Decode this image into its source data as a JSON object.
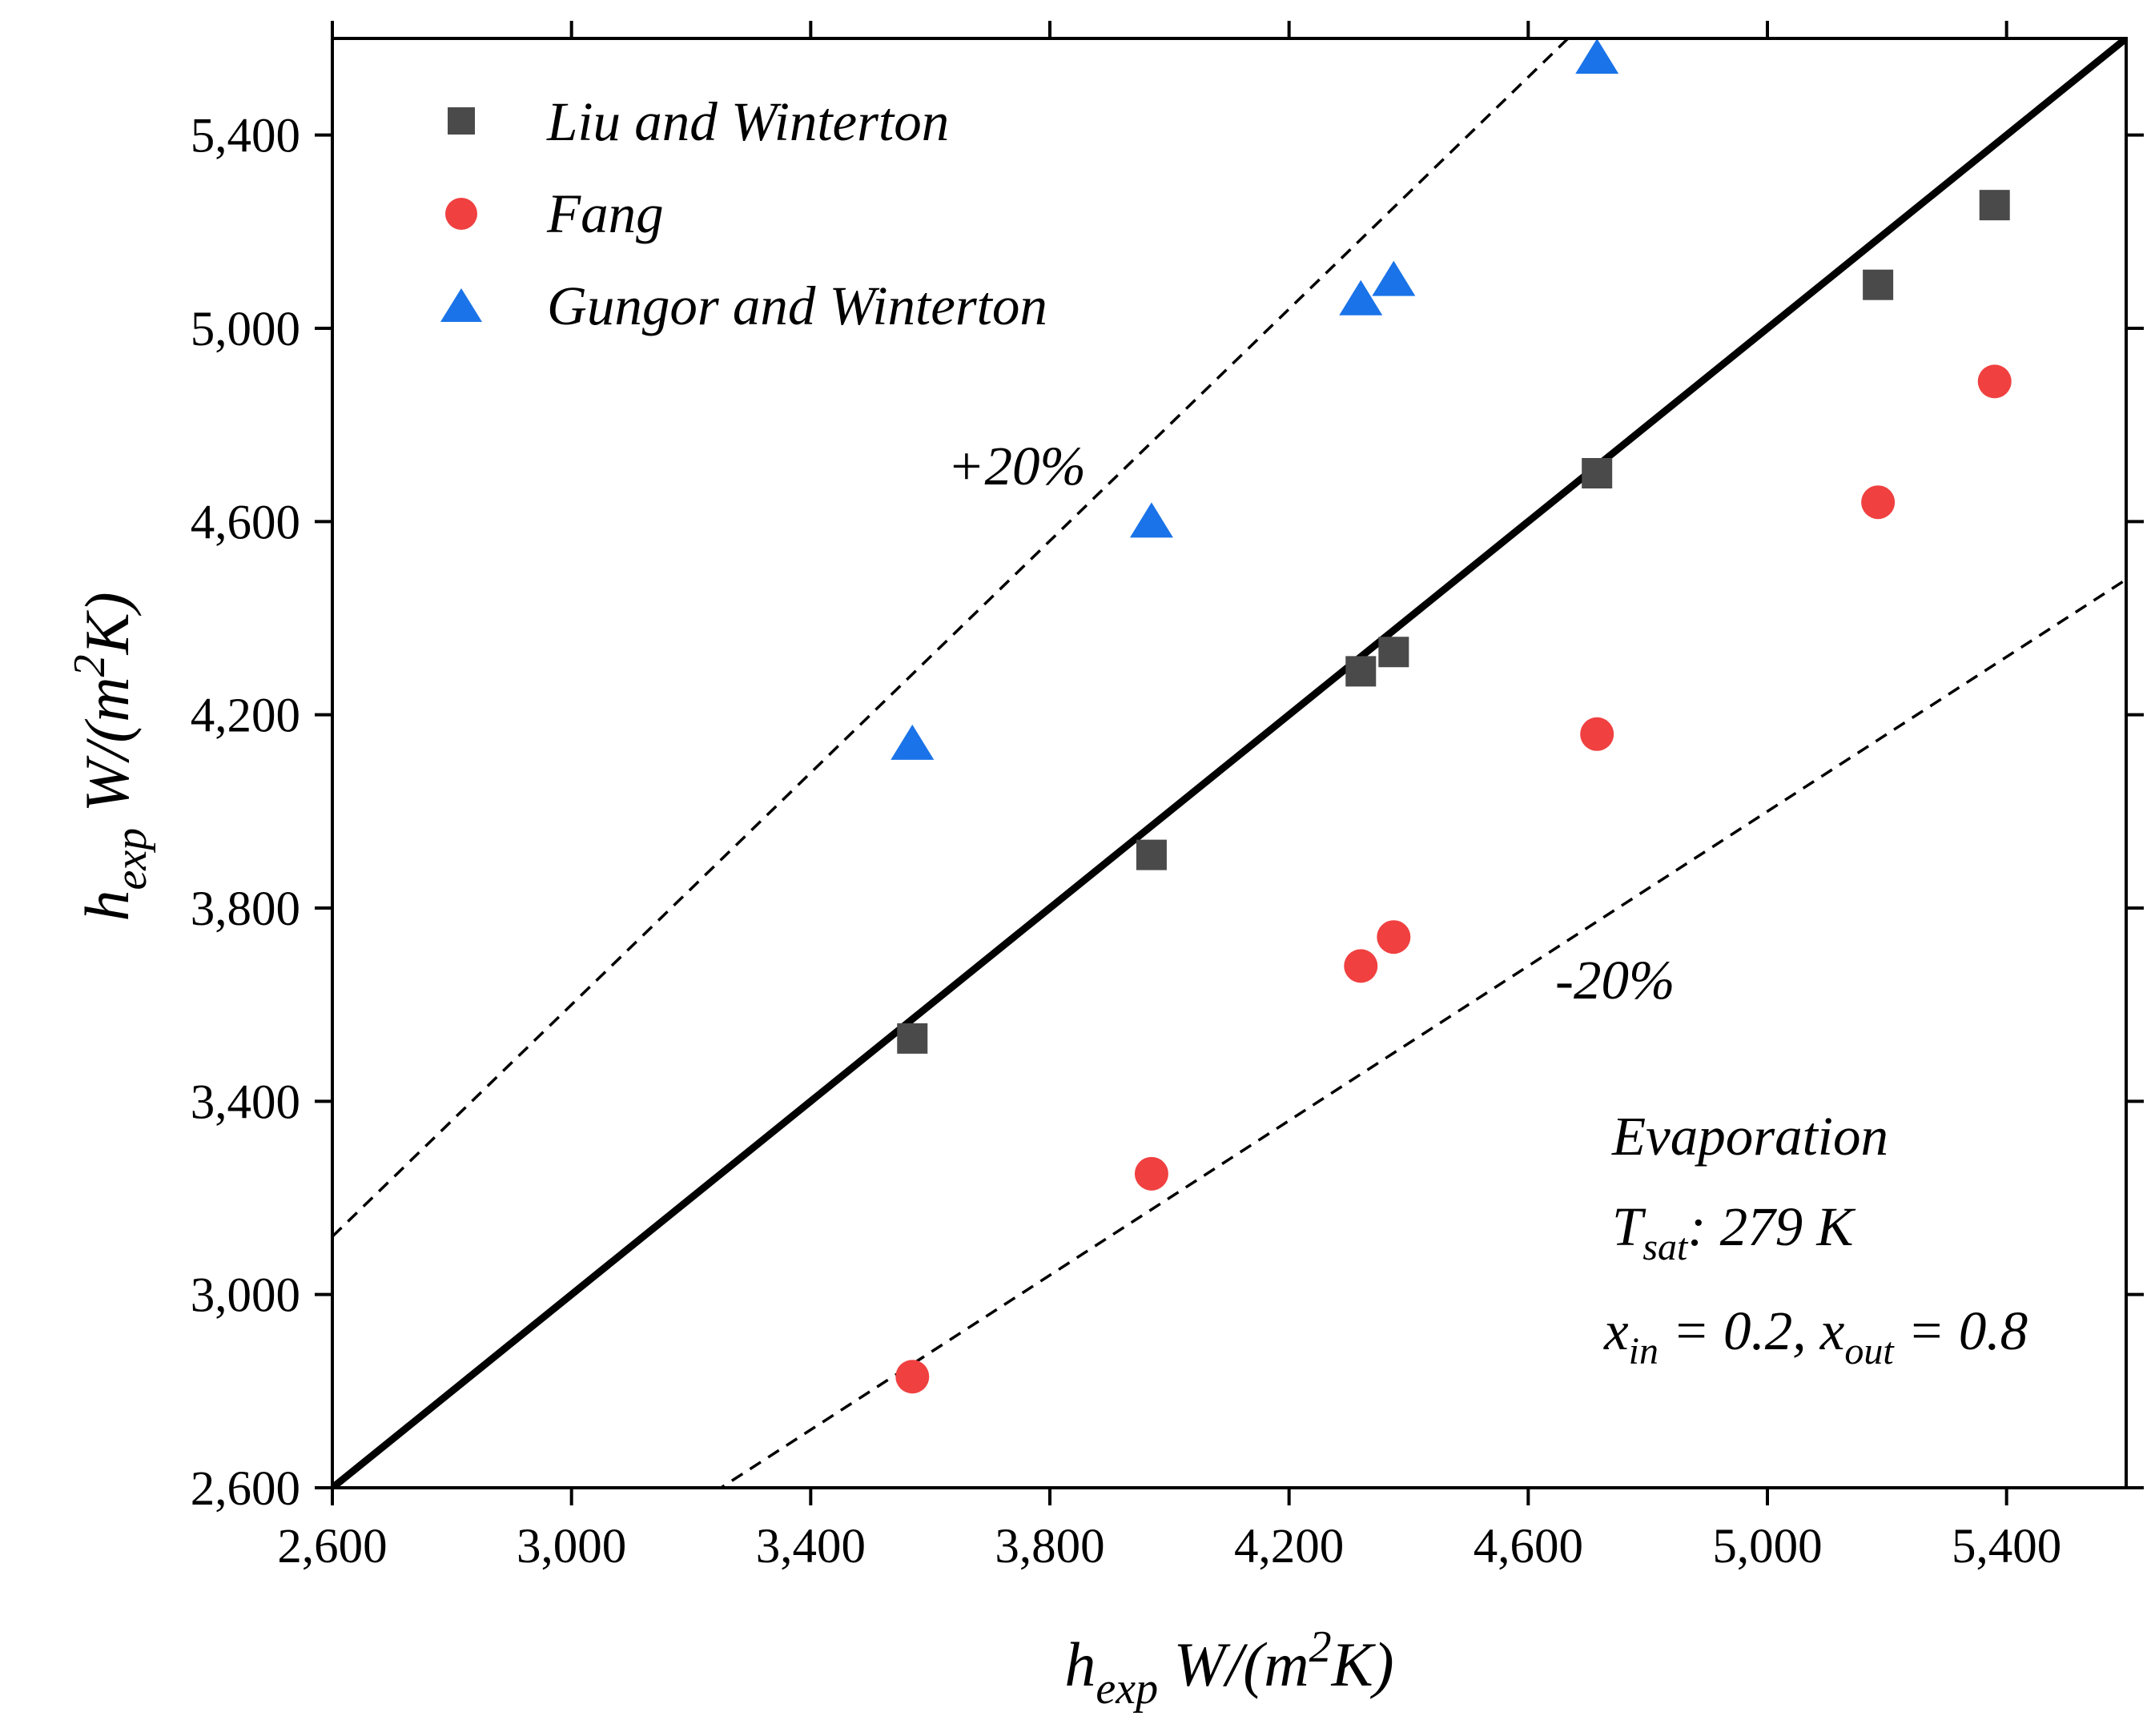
{
  "chart_data": {
    "type": "scatter",
    "title": "",
    "xlabel": {
      "main": "h",
      "sub": "exp",
      "unit": " W/(m",
      "sup": "2",
      "end": "K)"
    },
    "ylabel": {
      "main": "h",
      "sub": "exp",
      "unit": " W/(m",
      "sup": "2",
      "end": "K)"
    },
    "xlim": [
      2600,
      5600
    ],
    "ylim": [
      2600,
      5600
    ],
    "xticks": [
      2600,
      3000,
      3400,
      3800,
      4200,
      4600,
      5000,
      5400
    ],
    "yticks": [
      2600,
      3000,
      3400,
      3800,
      4200,
      4600,
      5000,
      5400
    ],
    "xtick_labels": [
      "2,600",
      "3,000",
      "3,400",
      "3,800",
      "4,200",
      "4,600",
      "5,000",
      "5,400"
    ],
    "ytick_labels": [
      "2,600",
      "3,000",
      "3,400",
      "3,800",
      "4,200",
      "4,600",
      "5,000",
      "5,400"
    ],
    "legend_position": "top-left",
    "series": [
      {
        "name": "Liu and Winterton",
        "marker": "square",
        "color": "#4a4a4a",
        "x": [
          3570,
          3970,
          4320,
          4375,
          4715,
          5185,
          5380
        ],
        "y": [
          3530,
          3910,
          4290,
          4330,
          4700,
          5090,
          5255
        ]
      },
      {
        "name": "Fang",
        "marker": "circle",
        "color": "#f04040",
        "x": [
          3570,
          3970,
          4320,
          4375,
          4715,
          5185,
          5380
        ],
        "y": [
          2830,
          3250,
          3680,
          3740,
          4160,
          4640,
          4890
        ]
      },
      {
        "name": "Gungor and Winterton",
        "marker": "triangle",
        "color": "#1a73e8",
        "x": [
          3570,
          3970,
          4320,
          4375,
          4715
        ],
        "y": [
          4140,
          4600,
          5060,
          5100,
          5560
        ]
      }
    ],
    "reference_lines": [
      {
        "name": "y = x",
        "slope": 1.0,
        "style": "solid"
      },
      {
        "name": "+20%",
        "slope": 1.2,
        "style": "dashed",
        "label": "+20%"
      },
      {
        "name": "-20%",
        "slope": 0.8,
        "style": "dashed",
        "label": "-20%"
      }
    ],
    "annotations": {
      "line1": "Evaporation",
      "line2_main": "T",
      "line2_sub": "sat",
      "line2_rest": ": 279 K",
      "line3_a": "x",
      "line3_a_sub": "in",
      "line3_b": " = 0.2, x",
      "line3_b_sub": "out",
      "line3_c": " = 0.8"
    }
  }
}
